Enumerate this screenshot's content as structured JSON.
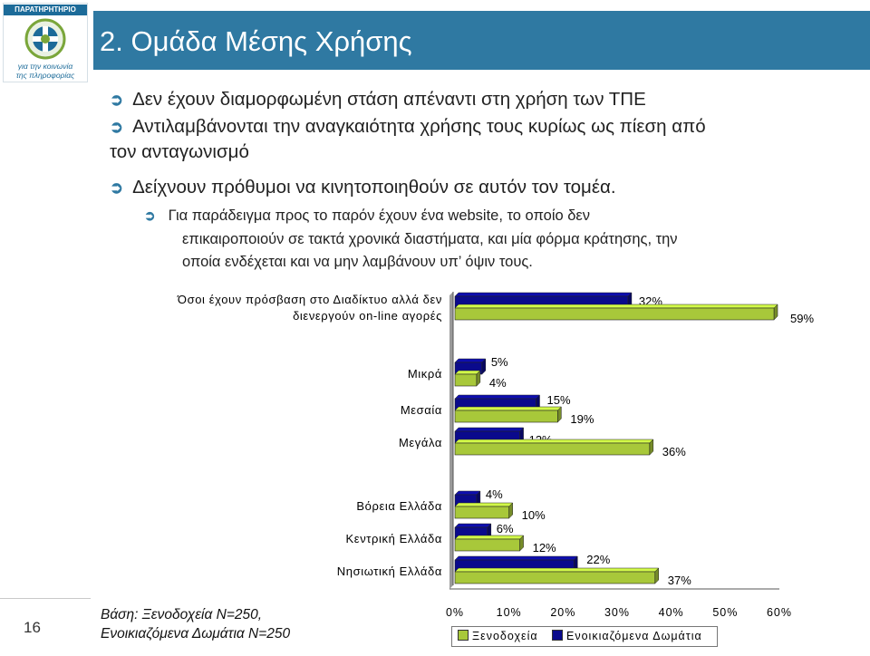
{
  "slide": {
    "title": "2. Ομάδα Μέσης Χρήσης",
    "logo_name": "ΠΑΡΑΤΗΡΗΤΗΡΙΟ",
    "logo_tagline_1": "για την κοινωνία",
    "logo_tagline_2": "της πληροφορίας",
    "bullets": [
      "Δεν έχουν διαμορφωμένη στάση απέναντι στη χρήση των ΤΠΕ",
      "Αντιλαμβάνονται την αναγκαιότητα χρήσης τους κυρίως ως πίεση από",
      "τον ανταγωνισμό",
      "Δείχνουν πρόθυμοι να κινητοποιηθούν σε αυτόν τον τομέα."
    ],
    "sub_bullet": [
      "Για παράδειγμα προς το παρόν έχουν ένα website, το οποίο δεν",
      "επικαιροποιούν σε τακτά χρονικά διαστήματα, και μία φόρμα κράτησης, την",
      "οποία ενδέχεται και να μην λαμβάνουν υπ’ όψιν τους."
    ],
    "base_note_1": "Βάση: Ξενοδοχεία Ν=250,",
    "base_note_2": "Ενοικιαζόμενα Δωμάτια Ν=250",
    "page_number": "16",
    "colors": {
      "title_band": "#2f79a2",
      "accent": "#2f79a2"
    }
  },
  "chart_data": {
    "type": "bar",
    "orientation": "horizontal",
    "categories": [
      "Όσοι έχουν πρόσβαση στο Διαδίκτυο αλλά δεν διενεργούν on-line αγορές",
      "Μικρά",
      "Μεσαία",
      "Μεγάλα",
      "Βόρεια Ελλάδα",
      "Κεντρική Ελλάδα",
      "Νησιωτική Ελλάδα"
    ],
    "category_lines": [
      [
        "Όσοι έχουν πρόσβαση στο Διαδίκτυο αλλά δεν",
        "διενεργούν on-line αγορές"
      ],
      [
        "Μικρά"
      ],
      [
        "Μεσαία"
      ],
      [
        "Μεγάλα"
      ],
      [
        "Βόρεια Ελλάδα"
      ],
      [
        "Κεντρική Ελλάδα"
      ],
      [
        "Νησιωτική Ελλάδα"
      ]
    ],
    "series": [
      {
        "name": "Ενοικιαζόμενα Δωμάτια",
        "color": "#0a0a8c",
        "values": [
          32,
          5,
          15,
          12,
          4,
          6,
          22
        ]
      },
      {
        "name": "Ξενοδοχεία",
        "color": "#a8c83a",
        "values": [
          59,
          4,
          19,
          36,
          10,
          12,
          37
        ]
      }
    ],
    "data_labels": [
      [
        "32%",
        "5%",
        "15%",
        "12%",
        "4%",
        "6%",
        "22%"
      ],
      [
        "59%",
        "4%",
        "19%",
        "36%",
        "10%",
        "12%",
        "37%"
      ]
    ],
    "x_ticks": [
      "0%",
      "10%",
      "20%",
      "30%",
      "40%",
      "50%",
      "60%"
    ],
    "xlim": [
      0,
      60
    ],
    "legend": {
      "placement": "bottom",
      "order": [
        "Ξενοδοχεία",
        "Ενοικιαζόμενα Δωμάτια"
      ]
    },
    "grid": false,
    "bar_style": "3d"
  }
}
